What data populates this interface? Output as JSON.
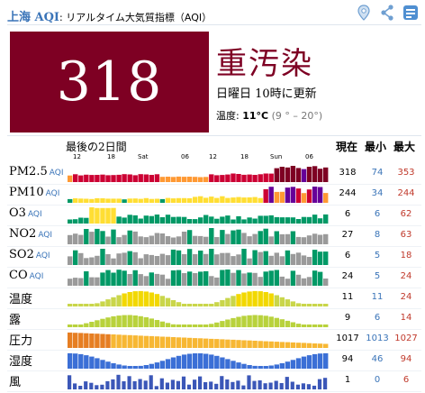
{
  "header": {
    "city": "上海 AQI",
    "subtitle": ": リアルタイム大気質指標（AQI）",
    "icons": [
      "location-icon",
      "share-icon",
      "info-icon"
    ]
  },
  "aqi": {
    "value": "318",
    "level": "重汚染",
    "updated": "日曜日 10時に更新",
    "temp_label": "温度: ",
    "temp_value": "11°C",
    "temp_range": "(9 ° – 20°)",
    "color": "#7e0023"
  },
  "table": {
    "period_label": "最後の2日間",
    "col_now": "現在",
    "col_min": "最小",
    "col_max": "最大",
    "time_ticks": [
      "12",
      "18",
      "Sat",
      "06",
      "12",
      "18",
      "Sun",
      "06"
    ],
    "rows": [
      {
        "name": "PM2.5",
        "aqi": "AQI",
        "now": "318",
        "min": "74",
        "max": "353",
        "type": "bar"
      },
      {
        "name": "PM10",
        "aqi": "AQI",
        "now": "244",
        "min": "34",
        "max": "244",
        "type": "bar"
      },
      {
        "name": "O3",
        "aqi": "AQI",
        "now": "6",
        "min": "6",
        "max": "62",
        "type": "bar"
      },
      {
        "name": "NO2",
        "aqi": "AQI",
        "now": "27",
        "min": "8",
        "max": "63",
        "type": "bar"
      },
      {
        "name": "SO2",
        "aqi": "AQI",
        "now": "6",
        "min": "5",
        "max": "18",
        "type": "bar"
      },
      {
        "name": "CO",
        "aqi": "AQI",
        "now": "24",
        "min": "5",
        "max": "24",
        "type": "bar"
      },
      {
        "name": "温度",
        "aqi": "",
        "now": "11",
        "min": "11",
        "max": "24",
        "type": "temp"
      },
      {
        "name": "露",
        "aqi": "",
        "now": "9",
        "min": "6",
        "max": "14",
        "type": "dew"
      },
      {
        "name": "圧力",
        "aqi": "",
        "now": "1017",
        "min": "1013",
        "max": "1027",
        "type": "pressure"
      },
      {
        "name": "湿度",
        "aqi": "",
        "now": "94",
        "min": "46",
        "max": "94",
        "type": "humidity"
      },
      {
        "name": "風",
        "aqi": "",
        "now": "1",
        "min": "0",
        "max": "6",
        "type": "wind"
      }
    ]
  },
  "colors": {
    "good": "#009966",
    "moderate": "#ffde33",
    "sensitive": "#ff9933",
    "unhealthy": "#cc0033",
    "very": "#660099",
    "hazard": "#7e0023",
    "gray": "#9a9a9a",
    "temp": "#cfd600",
    "pressure": "#f7b733",
    "humidity": "#3b6fd6",
    "wind": "#3b57b8",
    "link": "#3a74b8"
  }
}
